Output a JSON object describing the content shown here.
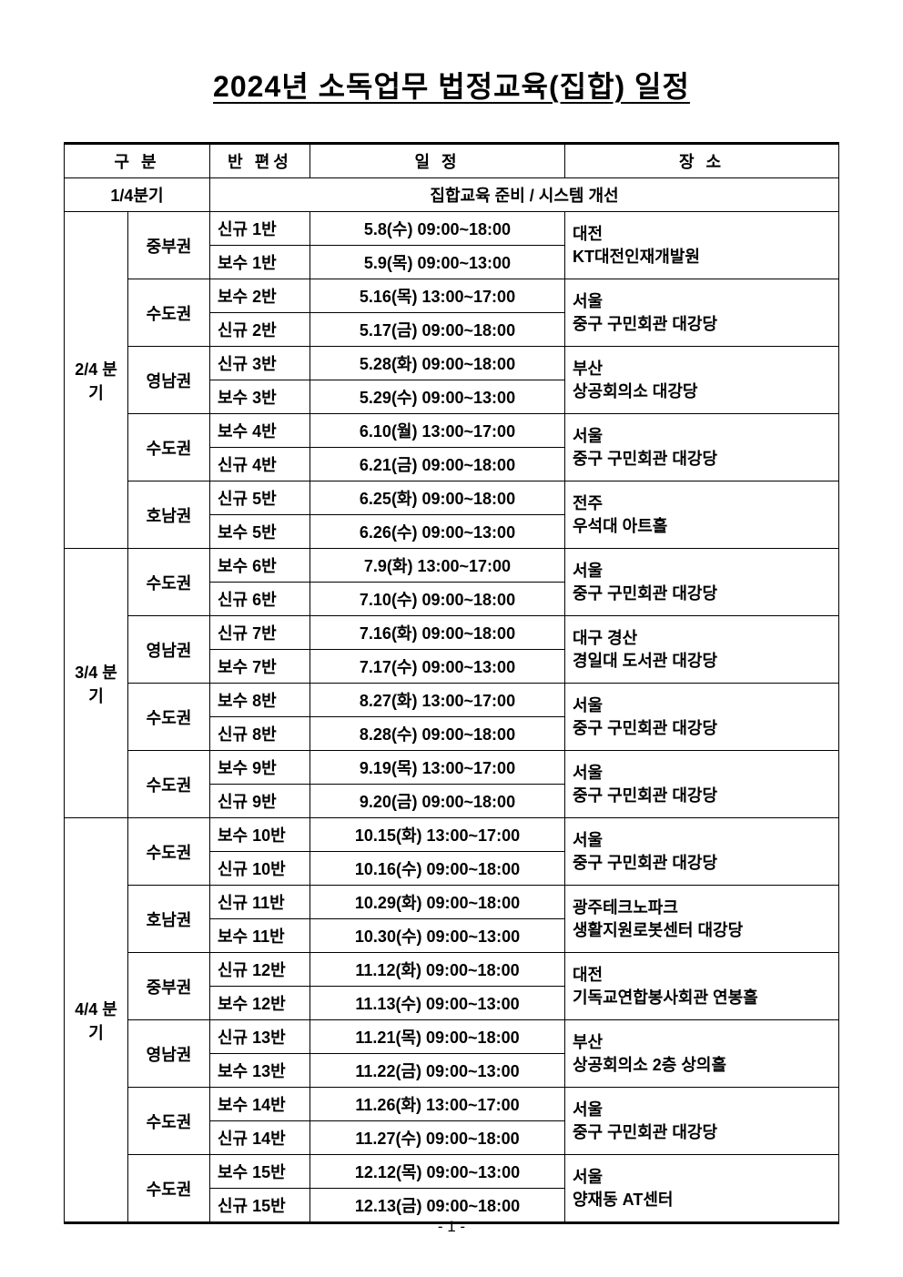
{
  "title": "2024년 소독업무 법정교육(집합) 일정",
  "page_number": "- 1 -",
  "headers": {
    "gubun": "구 분",
    "class": "반 편성",
    "schedule": "일 정",
    "place": "장 소"
  },
  "q1": {
    "label": "1/4분기",
    "note": "집합교육 준비 / 시스템 개선"
  },
  "q2": {
    "label": "2/4 분기",
    "regions": [
      {
        "name": "중부권",
        "place_line1": "대전",
        "place_line2": "KT대전인재개발원",
        "rows": [
          {
            "class": "신규 1반",
            "sched": "5.8(수) 09:00~18:00"
          },
          {
            "class": "보수 1반",
            "sched": "5.9(목) 09:00~13:00"
          }
        ]
      },
      {
        "name": "수도권",
        "place_line1": "서울",
        "place_line2": "중구 구민회관 대강당",
        "rows": [
          {
            "class": "보수 2반",
            "sched": "5.16(목) 13:00~17:00"
          },
          {
            "class": "신규 2반",
            "sched": "5.17(금) 09:00~18:00"
          }
        ]
      },
      {
        "name": "영남권",
        "place_line1": "부산",
        "place_line2": "상공회의소 대강당",
        "rows": [
          {
            "class": "신규 3반",
            "sched": "5.28(화) 09:00~18:00"
          },
          {
            "class": "보수 3반",
            "sched": "5.29(수) 09:00~13:00"
          }
        ]
      },
      {
        "name": "수도권",
        "place_line1": "서울",
        "place_line2": "중구 구민회관 대강당",
        "rows": [
          {
            "class": "보수 4반",
            "sched": "6.10(월) 13:00~17:00"
          },
          {
            "class": "신규 4반",
            "sched": "6.21(금) 09:00~18:00"
          }
        ]
      },
      {
        "name": "호남권",
        "place_line1": "전주",
        "place_line2": "우석대 아트홀",
        "rows": [
          {
            "class": "신규 5반",
            "sched": "6.25(화) 09:00~18:00"
          },
          {
            "class": "보수 5반",
            "sched": "6.26(수) 09:00~13:00"
          }
        ]
      }
    ]
  },
  "q3": {
    "label": "3/4 분기",
    "regions": [
      {
        "name": "수도권",
        "place_line1": "서울",
        "place_line2": "중구 구민회관 대강당",
        "rows": [
          {
            "class": "보수 6반",
            "sched": "7.9(화) 13:00~17:00"
          },
          {
            "class": "신규 6반",
            "sched": "7.10(수) 09:00~18:00"
          }
        ]
      },
      {
        "name": "영남권",
        "place_line1": "대구 경산",
        "place_line2": "경일대 도서관 대강당",
        "rows": [
          {
            "class": "신규 7반",
            "sched": "7.16(화) 09:00~18:00"
          },
          {
            "class": "보수 7반",
            "sched": "7.17(수) 09:00~13:00"
          }
        ]
      },
      {
        "name": "수도권",
        "place_line1": "서울",
        "place_line2": "중구 구민회관 대강당",
        "rows": [
          {
            "class": "보수 8반",
            "sched": "8.27(화) 13:00~17:00"
          },
          {
            "class": "신규 8반",
            "sched": "8.28(수) 09:00~18:00"
          }
        ]
      },
      {
        "name": "수도권",
        "place_line1": "서울",
        "place_line2": "중구 구민회관 대강당",
        "rows": [
          {
            "class": "보수 9반",
            "sched": "9.19(목) 13:00~17:00"
          },
          {
            "class": "신규 9반",
            "sched": "9.20(금) 09:00~18:00"
          }
        ]
      }
    ]
  },
  "q4": {
    "label": "4/4 분기",
    "regions": [
      {
        "name": "수도권",
        "place_line1": "서울",
        "place_line2": "중구 구민회관 대강당",
        "rows": [
          {
            "class": "보수 10반",
            "sched": "10.15(화) 13:00~17:00"
          },
          {
            "class": "신규 10반",
            "sched": "10.16(수) 09:00~18:00"
          }
        ]
      },
      {
        "name": "호남권",
        "place_line1": "광주테크노파크",
        "place_line2": "생활지원로봇센터 대강당",
        "rows": [
          {
            "class": "신규 11반",
            "sched": "10.29(화) 09:00~18:00"
          },
          {
            "class": "보수 11반",
            "sched": "10.30(수) 09:00~13:00"
          }
        ]
      },
      {
        "name": "중부권",
        "place_line1": "대전",
        "place_line2": "기독교연합봉사회관 연봉홀",
        "rows": [
          {
            "class": "신규 12반",
            "sched": "11.12(화) 09:00~18:00"
          },
          {
            "class": "보수 12반",
            "sched": "11.13(수) 09:00~13:00"
          }
        ]
      },
      {
        "name": "영남권",
        "place_line1": "부산",
        "place_line2": "상공회의소 2층 상의홀",
        "rows": [
          {
            "class": "신규 13반",
            "sched": "11.21(목) 09:00~18:00"
          },
          {
            "class": "보수 13반",
            "sched": "11.22(금) 09:00~13:00"
          }
        ]
      },
      {
        "name": "수도권",
        "place_line1": "서울",
        "place_line2": "중구 구민회관 대강당",
        "rows": [
          {
            "class": "보수 14반",
            "sched": "11.26(화) 13:00~17:00"
          },
          {
            "class": "신규 14반",
            "sched": "11.27(수) 09:00~18:00"
          }
        ]
      },
      {
        "name": "수도권",
        "place_line1": "서울",
        "place_line2": "양재동 AT센터",
        "rows": [
          {
            "class": "보수 15반",
            "sched": "12.12(목) 09:00~13:00"
          },
          {
            "class": "신규 15반",
            "sched": "12.13(금) 09:00~18:00"
          }
        ]
      }
    ]
  }
}
